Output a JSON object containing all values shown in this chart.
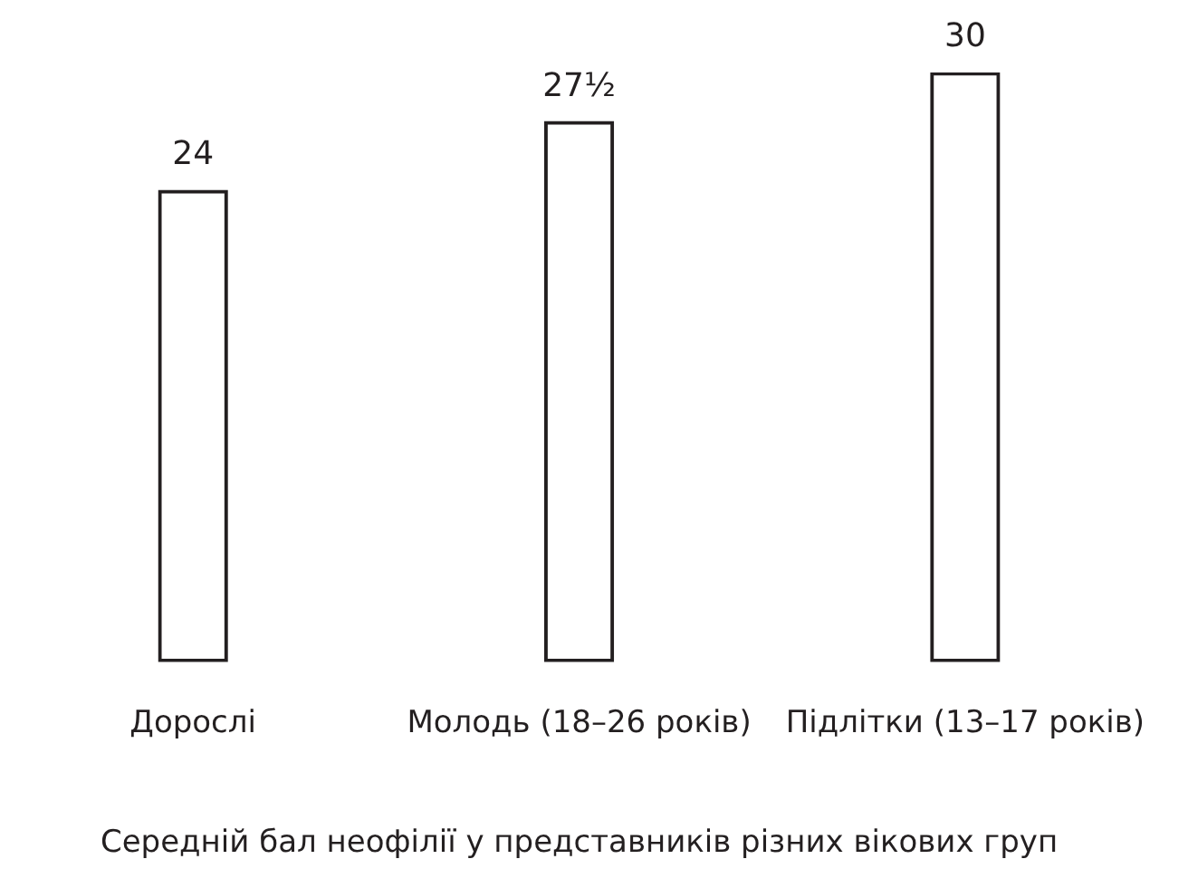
{
  "chart_data": {
    "type": "bar",
    "xlabel": "Середній бал неофілії у представників різних вікових груп",
    "categories": [
      "Дорослі",
      "Молодь (18–26 років)",
      "Підлітки (13–17 років)"
    ],
    "values": [
      24,
      27.5,
      30
    ],
    "value_labels": [
      "24",
      "27½",
      "30"
    ],
    "color": "#ffffff",
    "tick_labels": "x",
    "grid": false,
    "legend": false
  }
}
